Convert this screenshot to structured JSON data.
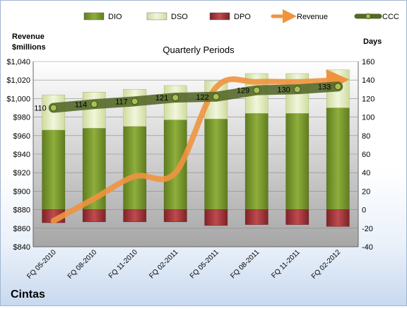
{
  "chart_data": {
    "type": "bar",
    "title": "Quarterly Periods",
    "company": "Cintas",
    "left_axis_label": [
      "Revenue",
      "$millions"
    ],
    "right_axis_label": "Days",
    "categories": [
      "FQ 05-2010",
      "FQ 08-2010",
      "FQ 11-2010",
      "FQ 02-2011",
      "FQ 05-2011",
      "FQ 08-2011",
      "FQ 11-2011",
      "FQ 02-2012"
    ],
    "left_axis": {
      "min": 840,
      "max": 1040,
      "step": 20,
      "format": "currency"
    },
    "right_axis": {
      "min": -40,
      "max": 160,
      "step": 20
    },
    "grid": true,
    "legend_position": "top",
    "series": [
      {
        "name": "DIO",
        "axis": "right",
        "kind": "bar",
        "color": "#7a9a2e",
        "values": [
          86,
          88,
          90,
          97,
          98,
          104,
          104,
          110
        ]
      },
      {
        "name": "DSO",
        "axis": "right",
        "kind": "bar",
        "color": "#e6efc4",
        "values": [
          38,
          39,
          40,
          37,
          41,
          43,
          43,
          41
        ]
      },
      {
        "name": "DPO",
        "axis": "right",
        "kind": "bar",
        "color": "#a9353a",
        "values": [
          -14,
          -13,
          -13,
          -13,
          -17,
          -16,
          -16,
          -18
        ]
      },
      {
        "name": "Revenue",
        "axis": "left",
        "kind": "line",
        "color": "#f0933f",
        "values": [
          868,
          892,
          916,
          920,
          1012,
          1018,
          1018,
          1020
        ]
      },
      {
        "name": "CCC",
        "axis": "right",
        "kind": "line",
        "color": "#6b7f3a",
        "values": [
          110,
          114,
          117,
          121,
          122,
          129,
          130,
          133
        ]
      }
    ]
  }
}
